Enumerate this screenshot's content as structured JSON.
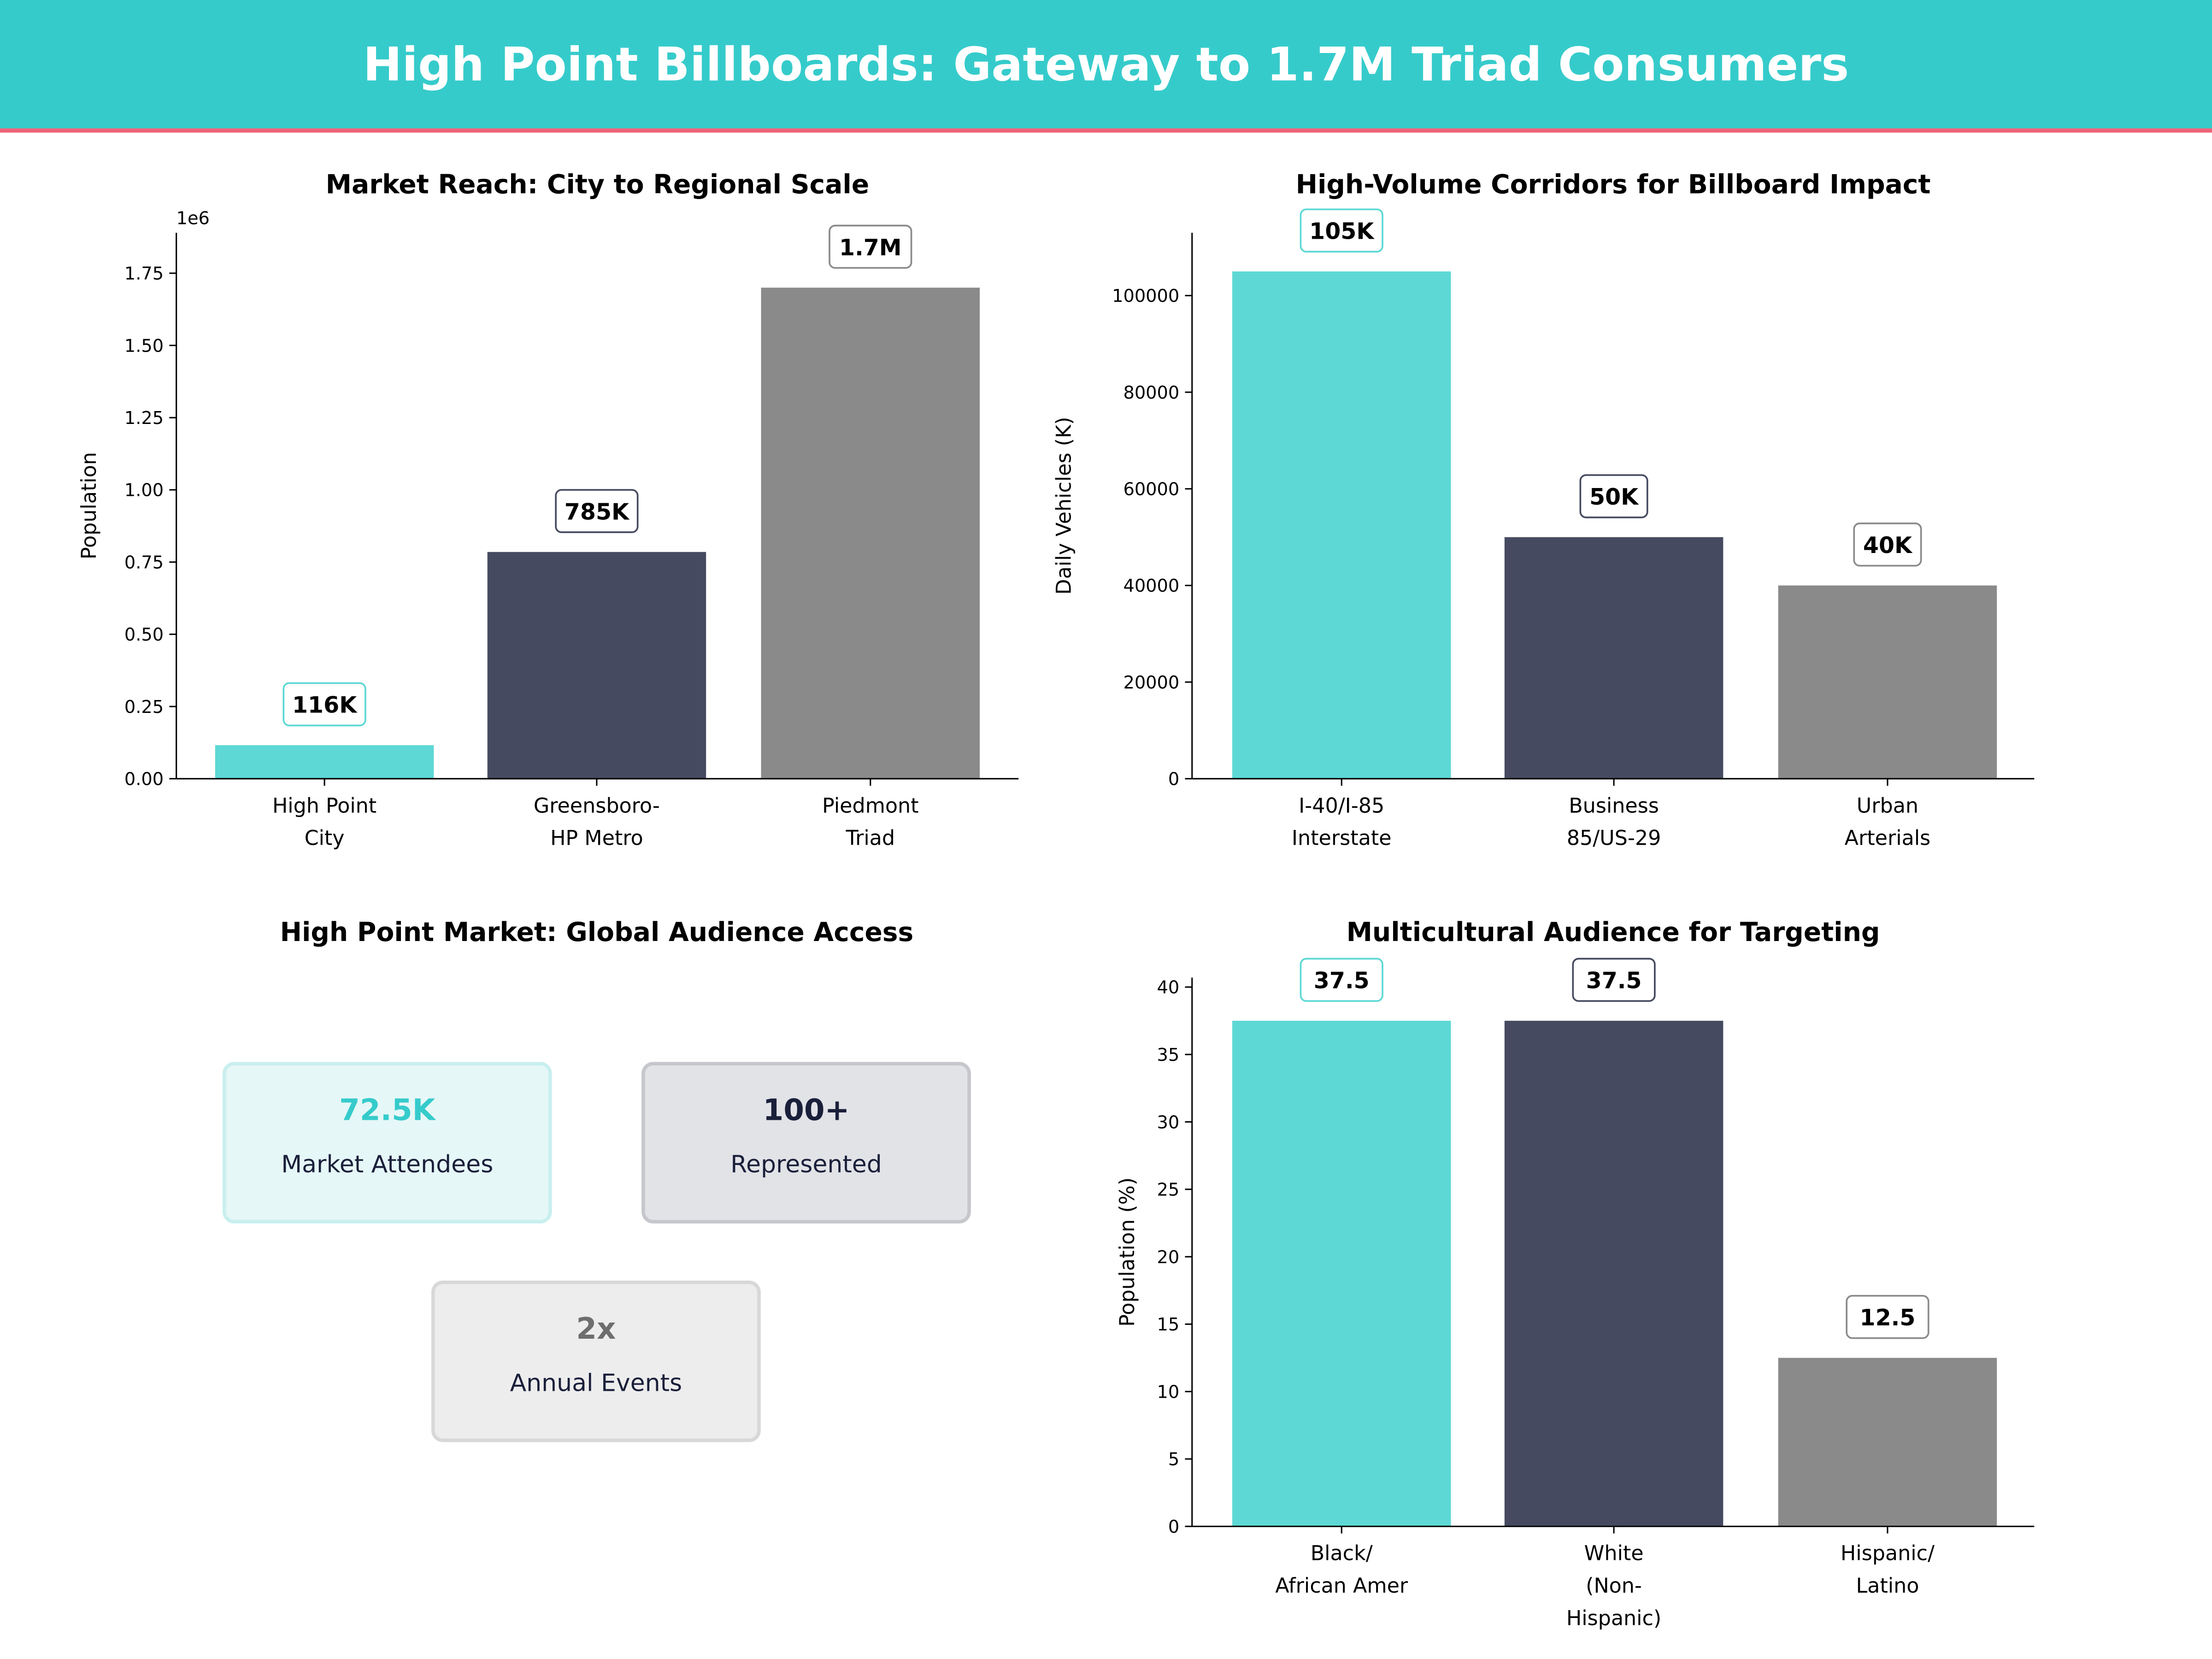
{
  "header": {
    "title": "High Point Billboards: Gateway to 1.7M Triad Consumers",
    "bg_color": "#36CBCB",
    "accent_line_color": "#F0637A"
  },
  "colors": {
    "teal": "#5DD8D5",
    "navy": "#454A60",
    "gray": "#8A8A8A"
  },
  "chart_data": [
    {
      "type": "bar",
      "title": "Market Reach: City to Regional Scale",
      "ylabel": "Population",
      "offset_label": "1e6",
      "categories": [
        [
          "High Point",
          "City"
        ],
        [
          "Greensboro-",
          "HP Metro"
        ],
        [
          "Piedmont",
          "Triad"
        ]
      ],
      "values": [
        116000,
        785000,
        1700000
      ],
      "data_labels": [
        "116K",
        "785K",
        "1.7M"
      ],
      "ylim": [
        0,
        1890000
      ],
      "yticks": [
        0,
        250000,
        500000,
        750000,
        1000000,
        1250000,
        1500000,
        1750000
      ],
      "ytick_labels": [
        "0.00",
        "0.25",
        "0.50",
        "0.75",
        "1.00",
        "1.25",
        "1.50",
        "1.75"
      ],
      "grid": false
    },
    {
      "type": "bar",
      "title": "High-Volume Corridors for Billboard Impact",
      "ylabel": "Daily Vehicles (K)",
      "categories": [
        [
          "I-40/I-85",
          "Interstate"
        ],
        [
          "Business",
          "85/US-29"
        ],
        [
          "Urban",
          "Arterials"
        ]
      ],
      "values": [
        105000,
        50000,
        40000
      ],
      "data_labels": [
        "105K",
        "50K",
        "40K"
      ],
      "ylim": [
        0,
        113000
      ],
      "yticks": [
        0,
        20000,
        40000,
        60000,
        80000,
        100000
      ],
      "ytick_labels": [
        "0",
        "20000",
        "40000",
        "60000",
        "80000",
        "100000"
      ],
      "grid": false
    },
    {
      "type": "bar",
      "title": "Multicultural Audience for Targeting",
      "ylabel": "Population (%)",
      "categories": [
        [
          "Black/",
          "African Amer"
        ],
        [
          "White",
          "(Non-",
          "Hispanic)"
        ],
        [
          "Hispanic/",
          "Latino"
        ]
      ],
      "values": [
        37.5,
        37.5,
        12.5
      ],
      "data_labels": [
        "37.5",
        "37.5",
        "12.5"
      ],
      "ylim": [
        0,
        40.7
      ],
      "yticks": [
        0,
        5,
        10,
        15,
        20,
        25,
        30,
        35,
        40
      ],
      "ytick_labels": [
        "0",
        "5",
        "10",
        "15",
        "20",
        "25",
        "30",
        "35",
        "40"
      ],
      "grid": false
    }
  ],
  "market_panel": {
    "title": "High Point Market: Global Audience Access",
    "cards": [
      {
        "value": "72.5K",
        "label": "Market Attendees",
        "value_color": "#36CBCB",
        "bg": "#E6F7F7",
        "border": "#C9EFEF"
      },
      {
        "value": "100+",
        "label": "Represented",
        "value_color": "#1A1F3A",
        "bg": "#E2E3E7",
        "border": "#C6C7CC"
      },
      {
        "value": "2x",
        "label": "Annual Events",
        "value_color": "#6E6E6E",
        "bg": "#EDEDED",
        "border": "#D8D8D8"
      }
    ]
  }
}
